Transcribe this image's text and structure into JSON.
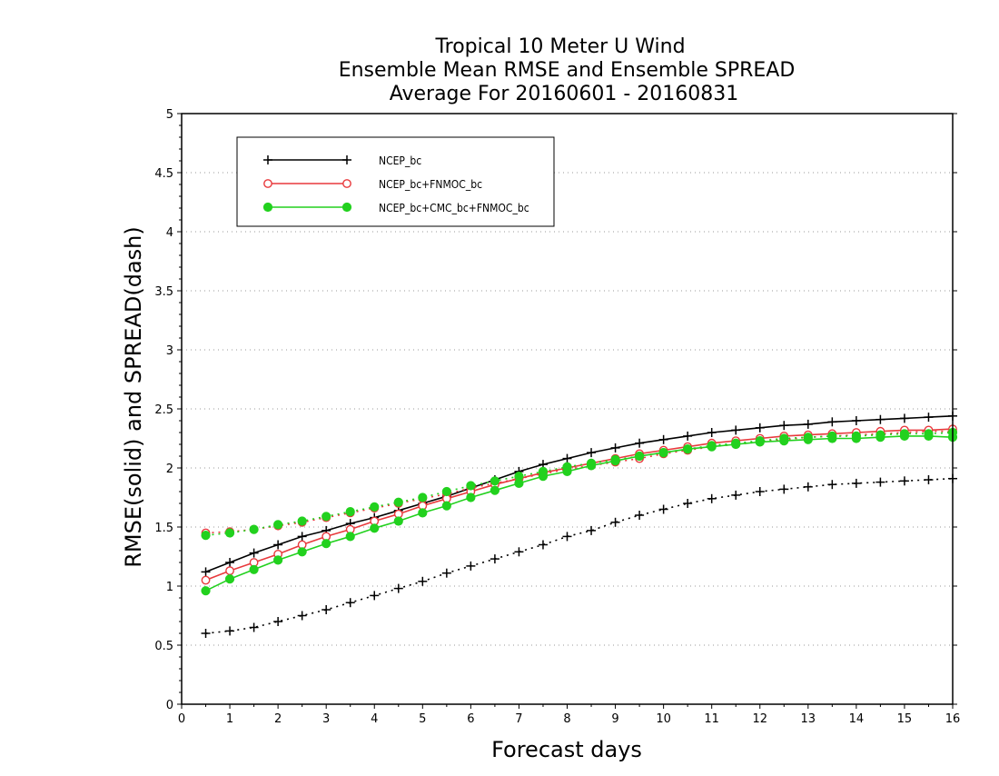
{
  "chart_data": {
    "type": "line",
    "title": [
      "Tropical 10 Meter U Wind",
      "Ensemble Mean RMSE and Ensemble SPREAD",
      "Average For 20160601 - 20160831"
    ],
    "xlabel": "Forecast days",
    "ylabel": "RMSE(solid) and SPREAD(dash)",
    "xlim": [
      0,
      16
    ],
    "ylim": [
      0,
      5
    ],
    "xticks": [
      "0",
      "1",
      "2",
      "3",
      "4",
      "5",
      "6",
      "7",
      "8",
      "9",
      "10",
      "11",
      "12",
      "13",
      "14",
      "15",
      "16"
    ],
    "yticks": [
      "0",
      "0.5",
      "1",
      "1.5",
      "2",
      "2.5",
      "3",
      "3.5",
      "4",
      "4.5",
      "5"
    ],
    "grid": "horizontal dotted",
    "legend_position": "top-left",
    "x": [
      0.5,
      1,
      1.5,
      2,
      2.5,
      3,
      3.5,
      4,
      4.5,
      5,
      5.5,
      6,
      6.5,
      7,
      7.5,
      8,
      8.5,
      9,
      9.5,
      10,
      10.5,
      11,
      11.5,
      12,
      12.5,
      13,
      13.5,
      14,
      14.5,
      15,
      15.5,
      16
    ],
    "series": [
      {
        "name": "NCEP_bc",
        "color": "#000000",
        "marker": "plus",
        "rmse": [
          1.12,
          1.2,
          1.28,
          1.35,
          1.42,
          1.47,
          1.53,
          1.58,
          1.64,
          1.7,
          1.76,
          1.83,
          1.9,
          1.97,
          2.03,
          2.08,
          2.13,
          2.17,
          2.21,
          2.24,
          2.27,
          2.3,
          2.32,
          2.34,
          2.36,
          2.37,
          2.39,
          2.4,
          2.41,
          2.42,
          2.43,
          2.44
        ],
        "spread": [
          0.6,
          0.62,
          0.65,
          0.7,
          0.75,
          0.8,
          0.86,
          0.92,
          0.98,
          1.04,
          1.11,
          1.17,
          1.23,
          1.29,
          1.35,
          1.42,
          1.47,
          1.54,
          1.6,
          1.65,
          1.7,
          1.74,
          1.77,
          1.8,
          1.82,
          1.84,
          1.86,
          1.87,
          1.88,
          1.89,
          1.9,
          1.91
        ]
      },
      {
        "name": "NCEP_bc+FNMOC_bc",
        "color": "#e8393c",
        "marker": "open-circle",
        "rmse": [
          1.05,
          1.13,
          1.2,
          1.27,
          1.35,
          1.42,
          1.48,
          1.55,
          1.61,
          1.68,
          1.74,
          1.8,
          1.86,
          1.91,
          1.96,
          2.0,
          2.04,
          2.08,
          2.12,
          2.15,
          2.18,
          2.21,
          2.23,
          2.25,
          2.27,
          2.28,
          2.29,
          2.3,
          2.31,
          2.32,
          2.32,
          2.33
        ],
        "spread": [
          1.45,
          1.46,
          1.48,
          1.51,
          1.54,
          1.58,
          1.62,
          1.66,
          1.7,
          1.74,
          1.78,
          1.83,
          1.87,
          1.91,
          1.95,
          1.99,
          2.02,
          2.05,
          2.08,
          2.12,
          2.15,
          2.18,
          2.2,
          2.22,
          2.24,
          2.26,
          2.27,
          2.28,
          2.29,
          2.3,
          2.31,
          2.31
        ]
      },
      {
        "name": "NCEP_bc+CMC_bc+FNMOC_bc",
        "color": "#22d11e",
        "marker": "filled-circle",
        "rmse": [
          0.96,
          1.06,
          1.14,
          1.22,
          1.29,
          1.36,
          1.42,
          1.49,
          1.55,
          1.62,
          1.68,
          1.75,
          1.81,
          1.87,
          1.93,
          1.97,
          2.02,
          2.06,
          2.1,
          2.13,
          2.16,
          2.18,
          2.2,
          2.22,
          2.23,
          2.24,
          2.25,
          2.25,
          2.26,
          2.27,
          2.27,
          2.26
        ],
        "spread": [
          1.43,
          1.45,
          1.48,
          1.52,
          1.55,
          1.59,
          1.63,
          1.67,
          1.71,
          1.75,
          1.8,
          1.85,
          1.89,
          1.93,
          1.97,
          2.01,
          2.04,
          2.07,
          2.1,
          2.13,
          2.16,
          2.19,
          2.21,
          2.23,
          2.25,
          2.26,
          2.27,
          2.27,
          2.28,
          2.29,
          2.29,
          2.3
        ]
      }
    ]
  }
}
